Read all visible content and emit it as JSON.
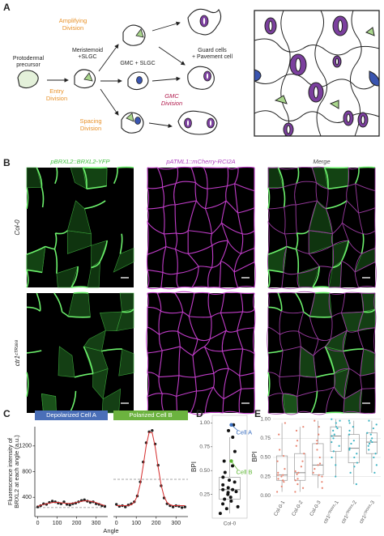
{
  "diagram": {
    "panel_label": "A",
    "precursor": [
      "Protodermal",
      "precursor"
    ],
    "meristemoid": [
      "Meristemoid",
      "+SLGC"
    ],
    "gmc": "GMC + SLGC",
    "guard": [
      "Guard cells",
      "+ Pavement cell"
    ],
    "entry": [
      "Entry",
      "Division"
    ],
    "amplifying": [
      "Amplifying",
      "Division"
    ],
    "spacing": [
      "Spacing",
      "Division"
    ],
    "gmc_division": [
      "GMC",
      "Division"
    ]
  },
  "micrographs": {
    "panel_label": "B",
    "columns": [
      "pBRXL2::BRXL2-YFP",
      "pATML1::mCherry-RCI2A",
      "Merge"
    ],
    "rows": [
      "Col-0",
      "ctr1ᶜᵀᴿ³⁸⁸"
    ]
  },
  "panel_labels": {
    "c": "C",
    "d": "D",
    "e": "E"
  },
  "chart_data": [
    {
      "type": "line",
      "title": "Depolarized Cell A",
      "header_color": "#4a6fb8",
      "ylabel": [
        "Fluorescence intensity of",
        "BRXL2 at each angle (a.u.)"
      ],
      "xlabel": "Angle",
      "x": [
        0,
        15,
        30,
        45,
        60,
        75,
        90,
        105,
        120,
        135,
        150,
        165,
        180,
        195,
        210,
        225,
        240,
        255,
        270,
        285,
        300,
        315,
        330,
        345
      ],
      "points": [
        250,
        270,
        300,
        290,
        320,
        340,
        330,
        310,
        300,
        330,
        290,
        280,
        300,
        310,
        330,
        350,
        360,
        340,
        320,
        330,
        300,
        290,
        270,
        260
      ],
      "fit": [
        260,
        275,
        290,
        300,
        310,
        318,
        322,
        320,
        315,
        310,
        305,
        305,
        310,
        318,
        328,
        338,
        345,
        345,
        340,
        330,
        318,
        300,
        285,
        270
      ],
      "point_color": "#222222",
      "fit_color": "#d42a2a",
      "reference": 240,
      "xlim": [
        -15,
        360
      ],
      "ylim": [
        100,
        1500
      ],
      "xticks": [
        0,
        100,
        200,
        300
      ],
      "yticks": [
        400,
        800,
        1200
      ]
    },
    {
      "type": "line",
      "title": "Polarized Cell B",
      "header_color": "#6cb33f",
      "x": [
        0,
        15,
        30,
        45,
        60,
        75,
        90,
        105,
        120,
        135,
        150,
        165,
        180,
        195,
        210,
        225,
        240,
        255,
        270,
        285,
        300,
        315,
        330,
        345
      ],
      "points": [
        290,
        260,
        270,
        250,
        280,
        300,
        330,
        420,
        640,
        950,
        1250,
        1420,
        1440,
        1230,
        900,
        580,
        390,
        300,
        270,
        250,
        270,
        260,
        240,
        250
      ],
      "fit": [
        270,
        270,
        270,
        270,
        274,
        284,
        323,
        419,
        608,
        894,
        1207,
        1414,
        1406,
        1187,
        873,
        592,
        410,
        319,
        284,
        271,
        270,
        270,
        270,
        270
      ],
      "point_color": "#222222",
      "fit_color": "#d42a2a",
      "reference": 680,
      "xlim": [
        -15,
        360
      ],
      "ylim": [
        100,
        1500
      ],
      "xticks": [
        0,
        100,
        200,
        300
      ]
    },
    {
      "type": "box",
      "ylabel": "BPI",
      "categories": [
        "Col-0"
      ],
      "colors": [
        "#111111"
      ],
      "values": [
        [
          0.05,
          0.1,
          0.12,
          0.15,
          0.18,
          0.2,
          0.22,
          0.25,
          0.27,
          0.28,
          0.3,
          0.3,
          0.32,
          0.35,
          0.38,
          0.4,
          0.43,
          0.48,
          0.55,
          0.6,
          0.7,
          0.85,
          0.92,
          0.98
        ]
      ],
      "boxes": [
        {
          "q1": 0.2,
          "median": 0.3,
          "q3": 0.43,
          "low": 0.05,
          "high": 0.85
        }
      ],
      "annotations": [
        {
          "text": "Cell A",
          "value": 0.98,
          "color": "#3a6fc0"
        },
        {
          "text": "Cell B",
          "value": 0.6,
          "color": "#5cb531"
        }
      ],
      "ylim": [
        0,
        1.08
      ],
      "yticks": [
        0.25,
        {
          "value": 0.5,
          "label": "0.50"
        },
        0.75,
        {
          "value": 1,
          "label": "1.00"
        }
      ]
    },
    {
      "type": "box",
      "ylabel": "BPI",
      "categories": [
        "Col-0-1",
        "Col-0-2",
        "Col-0-3",
        "ctr1ᶜᵀᴿ³⁸⁸-1",
        "ctr1ᶜᵀᴿ³⁸⁸-2",
        "ctr1ᶜᵀᴿ³⁸⁸-3"
      ],
      "colors": [
        "#e8836f",
        "#e8836f",
        "#e8836f",
        "#3bb3c3",
        "#3bb3c3",
        "#3bb3c3"
      ],
      "values": [
        [
          0.05,
          0.12,
          0.18,
          0.2,
          0.22,
          0.25,
          0.27,
          0.27,
          0.3,
          0.35,
          0.45,
          0.52,
          0.6,
          0.8,
          0.95
        ],
        [
          0.05,
          0.1,
          0.15,
          0.2,
          0.22,
          0.28,
          0.3,
          0.32,
          0.38,
          0.45,
          0.55,
          0.65,
          0.72,
          0.85,
          0.9
        ],
        [
          0.1,
          0.18,
          0.25,
          0.27,
          0.3,
          0.35,
          0.4,
          0.42,
          0.5,
          0.6,
          0.68,
          0.72,
          0.8,
          0.9,
          0.98
        ],
        [
          0.25,
          0.4,
          0.5,
          0.58,
          0.65,
          0.7,
          0.75,
          0.78,
          0.8,
          0.85,
          0.88,
          0.9,
          0.95,
          0.98,
          1.0
        ],
        [
          0.15,
          0.3,
          0.38,
          0.43,
          0.5,
          0.55,
          0.6,
          0.62,
          0.68,
          0.72,
          0.8,
          0.85,
          0.9,
          0.95,
          0.98
        ],
        [
          0.3,
          0.4,
          0.5,
          0.55,
          0.6,
          0.65,
          0.68,
          0.7,
          0.72,
          0.75,
          0.8,
          0.82,
          0.88,
          0.93,
          0.98
        ]
      ],
      "boxes": [
        {
          "q1": 0.2,
          "median": 0.27,
          "q3": 0.52,
          "low": 0.05,
          "high": 0.95
        },
        {
          "q1": 0.2,
          "median": 0.3,
          "q3": 0.55,
          "low": 0.05,
          "high": 0.9
        },
        {
          "q1": 0.27,
          "median": 0.4,
          "q3": 0.68,
          "low": 0.1,
          "high": 0.98
        },
        {
          "q1": 0.58,
          "median": 0.78,
          "q3": 0.9,
          "low": 0.25,
          "high": 1.0
        },
        {
          "q1": 0.43,
          "median": 0.62,
          "q3": 0.8,
          "low": 0.15,
          "high": 0.98
        },
        {
          "q1": 0.55,
          "median": 0.7,
          "q3": 0.82,
          "low": 0.3,
          "high": 0.98
        }
      ],
      "ylim": [
        -0.03,
        1.05
      ],
      "yticks": [
        {
          "value": 0,
          "label": "0.00"
        },
        0.25,
        {
          "value": 0.5,
          "label": "0.50"
        },
        0.75,
        {
          "value": 1,
          "label": "1.00"
        }
      ],
      "grid": true
    }
  ]
}
